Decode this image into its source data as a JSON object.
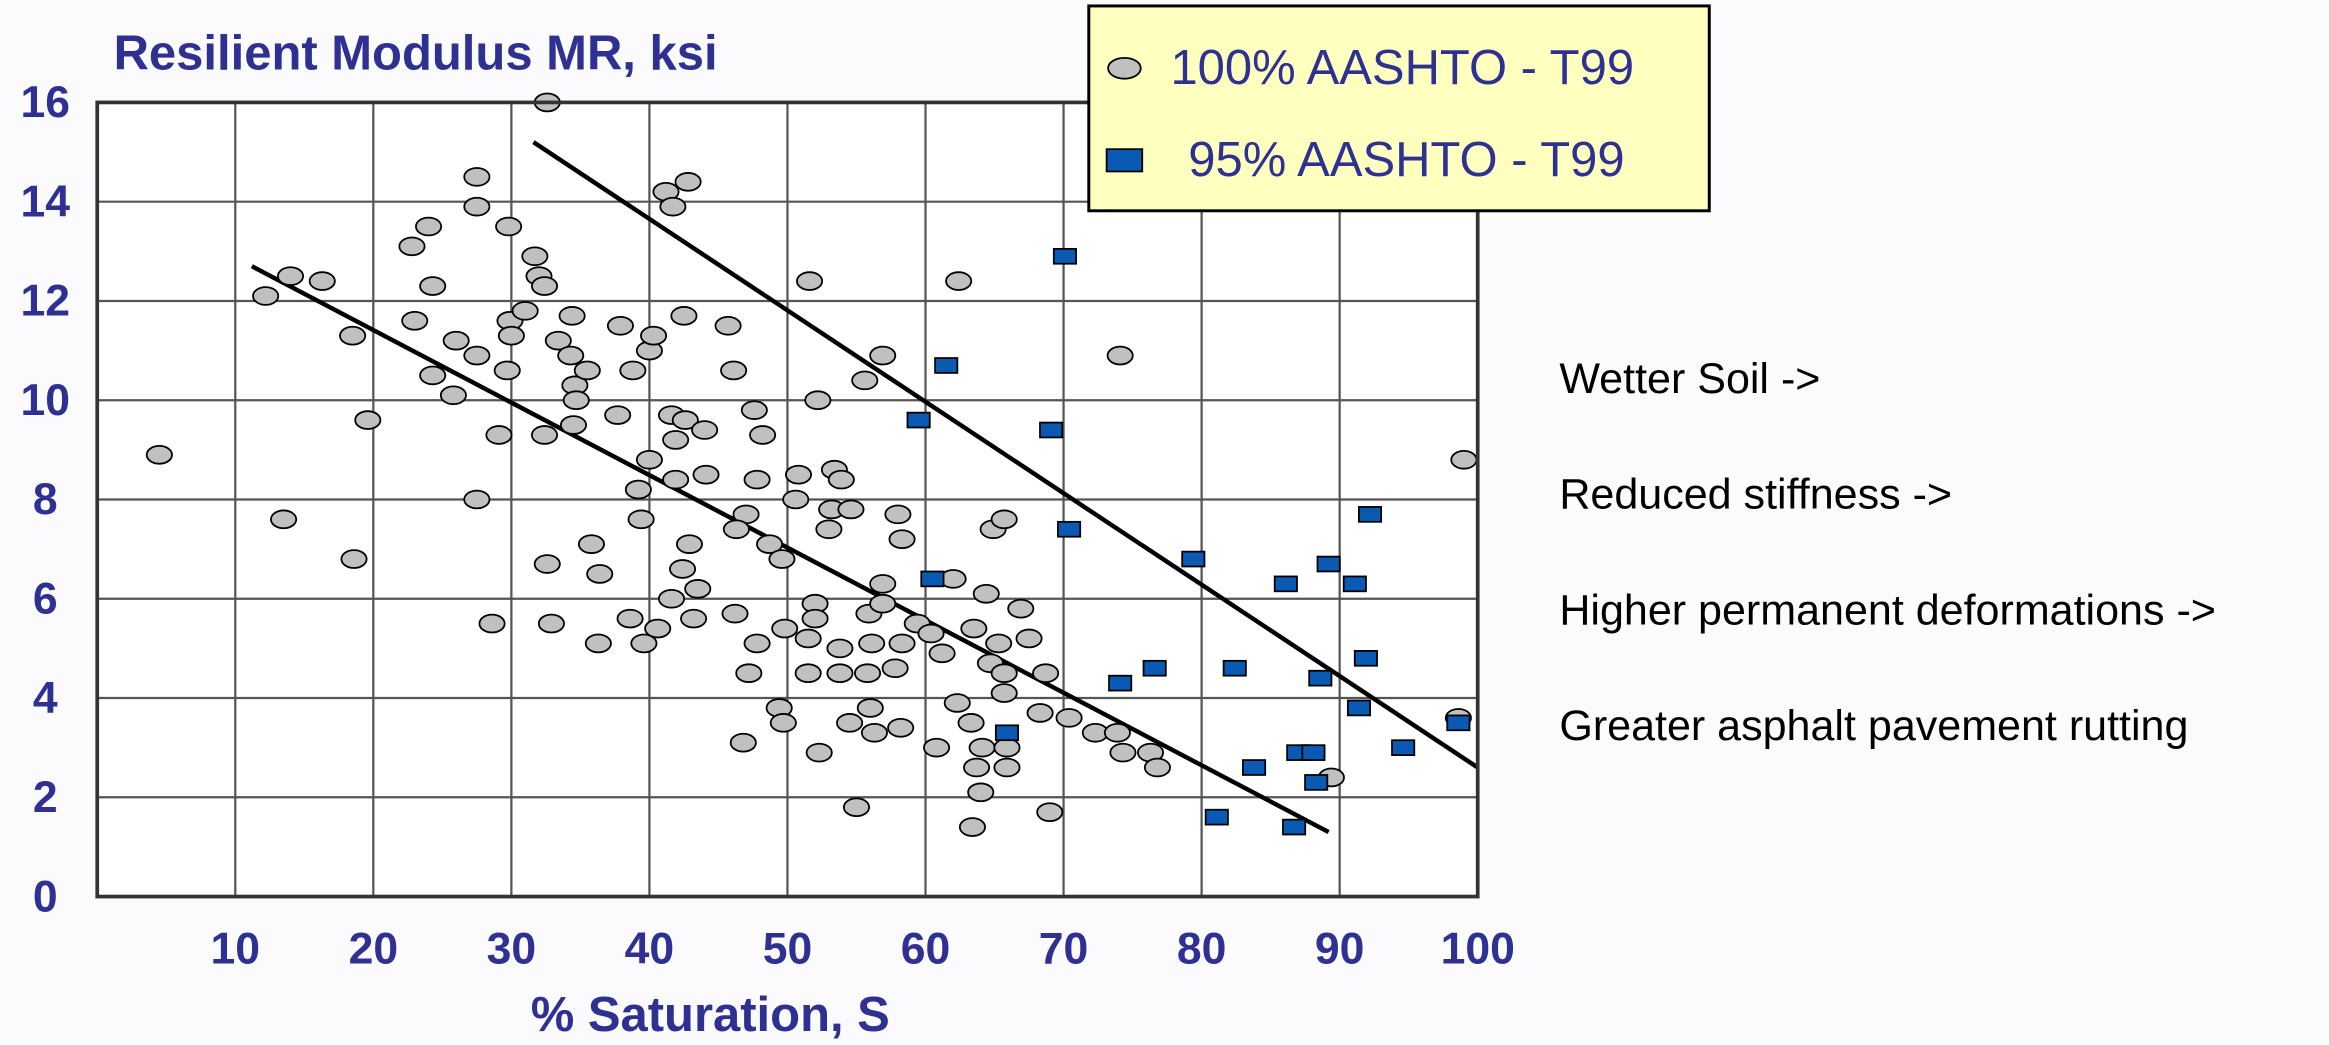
{
  "chart_data": {
    "type": "scatter",
    "title": "Resilient Modulus MR, ksi",
    "x_label": "% Saturation, S",
    "xlim": [
      0,
      100
    ],
    "xticks": [
      10,
      20,
      30,
      40,
      50,
      60,
      70,
      80,
      90,
      100
    ],
    "ylim": [
      0,
      16
    ],
    "yticks": [
      0,
      2,
      4,
      6,
      8,
      10,
      12,
      14,
      16
    ],
    "grid": true,
    "legend": "top-right",
    "series": [
      {
        "name": "100% AASHTO - T99",
        "color": "#c0c0c0",
        "marker": "circle",
        "x": [
          4.5,
          12.2,
          14,
          16.3,
          13.5,
          18.5,
          19.6,
          18.6,
          22.8,
          24,
          24.3,
          23,
          24.3,
          25.8,
          26,
          27.5,
          27.5,
          27.5,
          29.8,
          29.1,
          27.5,
          28.6,
          29.7,
          29.9,
          30,
          31,
          31.7,
          32,
          32.4,
          32.6,
          32.4,
          32.6,
          32.9,
          33.4,
          34.3,
          34.4,
          34.6,
          34.7,
          34.5,
          35.5,
          35.8,
          36.4,
          36.3,
          37.7,
          37.9,
          38.8,
          39.2,
          39.4,
          39.6,
          40,
          40.3,
          40,
          40.6,
          41.2,
          41.7,
          42.8,
          42.5,
          41.6,
          41.9,
          41.9,
          42.6,
          44,
          44.1,
          42.9,
          42.4,
          43.5,
          41.6,
          38.6,
          43.2,
          45.7,
          46.1,
          47.6,
          48.2,
          47.8,
          47,
          46.3,
          48.7,
          49.6,
          46.2,
          47.8,
          47.2,
          46.8,
          49.4,
          49.7,
          49.8,
          51.6,
          52.2,
          50.8,
          50.6,
          52,
          52,
          51.5,
          51.5,
          52.3,
          53.4,
          53.9,
          53.2,
          54.6,
          53,
          53.8,
          53.8,
          54.5,
          55,
          55.6,
          56.9,
          55.9,
          56.1,
          55.8,
          56,
          56.3,
          56.9,
          56.9,
          58,
          58.3,
          58.3,
          57.8,
          58.2,
          59.4,
          60.4,
          61.2,
          60.8,
          62,
          62.4,
          62.3,
          63.3,
          63.5,
          64.4,
          64.9,
          65.7,
          64.7,
          65.3,
          65.7,
          65.7,
          64.1,
          63.7,
          64,
          63.4,
          65.9,
          65.9,
          66.9,
          67.5,
          68.7,
          68.3,
          69,
          70.4,
          72.3,
          73.9,
          74.3,
          74.1,
          76.3,
          76.8,
          89.4,
          99,
          98.6
        ],
        "values": [
          8.9,
          12.1,
          12.5,
          12.4,
          7.6,
          11.3,
          9.6,
          6.8,
          13.1,
          13.5,
          12.3,
          11.6,
          10.5,
          10.1,
          11.2,
          10.9,
          14.5,
          13.9,
          13.5,
          9.3,
          8,
          5.5,
          10.6,
          11.6,
          11.3,
          11.8,
          12.9,
          12.5,
          12.3,
          16,
          9.3,
          6.7,
          5.5,
          11.2,
          10.9,
          11.7,
          10.3,
          10,
          9.5,
          10.6,
          7.1,
          6.5,
          5.1,
          9.7,
          11.5,
          10.6,
          8.2,
          7.6,
          5.1,
          11,
          11.3,
          8.8,
          5.4,
          14.2,
          13.9,
          14.4,
          11.7,
          9.7,
          9.2,
          8.4,
          9.6,
          9.4,
          8.5,
          7.1,
          6.6,
          6.2,
          6,
          5.6,
          5.6,
          11.5,
          10.6,
          9.8,
          9.3,
          8.4,
          7.7,
          7.4,
          7.1,
          6.8,
          5.7,
          5.1,
          4.5,
          3.1,
          3.8,
          3.5,
          5.4,
          12.4,
          10,
          8.5,
          8,
          5.9,
          5.6,
          5.2,
          4.5,
          2.9,
          8.6,
          8.4,
          7.8,
          7.8,
          7.4,
          5,
          4.5,
          3.5,
          1.8,
          10.4,
          10.9,
          5.7,
          5.1,
          4.5,
          3.8,
          3.3,
          6.3,
          5.9,
          7.7,
          7.2,
          5.1,
          4.6,
          3.4,
          5.5,
          5.3,
          4.9,
          3,
          6.4,
          12.4,
          3.9,
          3.5,
          5.4,
          6.1,
          7.4,
          7.6,
          4.7,
          5.1,
          4.5,
          4.1,
          3,
          2.6,
          2.1,
          1.4,
          3,
          2.6,
          5.8,
          5.2,
          4.5,
          3.7,
          1.7,
          3.6,
          3.3,
          3.3,
          2.9,
          10.9,
          2.9,
          2.6,
          2.4,
          8.8,
          3.6
        ]
      },
      {
        "name": "95% AASHTO - T99",
        "color": "#0a5ab4",
        "marker": "square",
        "x": [
          70.1,
          61.5,
          59.5,
          69.1,
          70.4,
          60.5,
          65.9,
          74.1,
          76.6,
          79.4,
          82.4,
          81.1,
          83.8,
          86.1,
          89.2,
          91.1,
          92.2,
          91.9,
          88.6,
          91.4,
          87,
          88.1,
          88.3,
          86.7,
          94.6,
          98.6
        ],
        "values": [
          12.9,
          10.7,
          9.6,
          9.4,
          7.4,
          6.4,
          3.3,
          4.3,
          4.6,
          6.8,
          4.6,
          1.6,
          2.6,
          6.3,
          6.7,
          6.3,
          7.7,
          4.8,
          4.4,
          3.8,
          2.9,
          2.9,
          2.3,
          1.4,
          3,
          3.5
        ]
      }
    ],
    "trend_lines": [
      {
        "color": "#000000",
        "x": [
          11.2,
          89.2
        ],
        "values": [
          12.7,
          1.3
        ]
      },
      {
        "color": "#000000",
        "x": [
          31.6,
          100
        ],
        "values": [
          15.2,
          2.6
        ]
      }
    ],
    "annotations": [
      "Wetter Soil ->",
      "Reduced stiffness ->",
      "Higher permanent deformations ->",
      "Greater asphalt pavement rutting"
    ]
  }
}
